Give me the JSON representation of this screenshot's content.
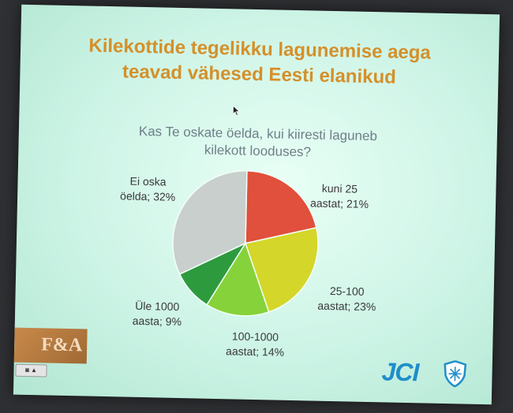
{
  "slide": {
    "title_line1": "Kilekottide tegelikku lagunemise aega",
    "title_line2": "teavad vähesed Eesti elanikud",
    "question_line1": "Kas Te oskate öelda, kui kiiresti laguneb",
    "question_line2": "kilekott looduses?",
    "logo_left_text": "F&A",
    "logo_right_text": "JCI",
    "taskbar_text": "◙ ▲"
  },
  "chart_data": {
    "type": "pie",
    "title": "Kas Te oskate öelda, kui kiiresti laguneb kilekott looduses?",
    "slices": [
      {
        "label_line1": "kuni 25",
        "label_line2": "aastat; 21%",
        "value": 21,
        "color": "#e0503c"
      },
      {
        "label_line1": "25-100",
        "label_line2": "aastat; 23%",
        "value": 23,
        "color": "#d4d62a"
      },
      {
        "label_line1": "100-1000",
        "label_line2": "aastat; 14%",
        "value": 14,
        "color": "#86d23a"
      },
      {
        "label_line1": "Üle 1000",
        "label_line2": "aasta; 9%",
        "value": 9,
        "color": "#2e9a3e"
      },
      {
        "label_line1": "Ei oska",
        "label_line2": "öelda; 32%",
        "value": 32,
        "color": "#c9cfcc"
      }
    ],
    "start_angle_deg": 0,
    "direction": "clockwise",
    "legend": "none, data labels beside slices"
  },
  "colors": {
    "title": "#d4902a",
    "question": "#6f7f88",
    "screen_bg": "#d6f7ea",
    "jci_blue": "#1f8ec9"
  }
}
